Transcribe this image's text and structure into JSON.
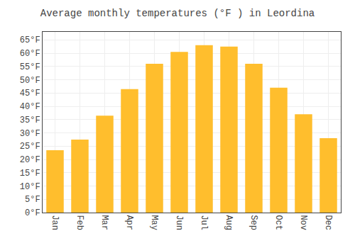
{
  "chart_data": {
    "type": "bar",
    "title": "Average monthly temperatures (°F ) in Leordina",
    "categories": [
      "Jan",
      "Feb",
      "Mar",
      "Apr",
      "May",
      "Jun",
      "Jul",
      "Aug",
      "Sep",
      "Oct",
      "Nov",
      "Dec"
    ],
    "values": [
      23.5,
      27.5,
      36.5,
      46.5,
      56.0,
      60.5,
      63.0,
      62.5,
      56.0,
      47.0,
      37.0,
      28.0
    ],
    "color": "#FFBE2D",
    "ylim": [
      0,
      68
    ],
    "yticks": [
      {
        "value": 0,
        "label": "0°F"
      },
      {
        "value": 5,
        "label": "5°F"
      },
      {
        "value": 10,
        "label": "10°F"
      },
      {
        "value": 15,
        "label": "15°F"
      },
      {
        "value": 20,
        "label": "20°F"
      },
      {
        "value": 25,
        "label": "25°F"
      },
      {
        "value": 30,
        "label": "30°F"
      },
      {
        "value": 35,
        "label": "35°F"
      },
      {
        "value": 40,
        "label": "40°F"
      },
      {
        "value": 45,
        "label": "45°F"
      },
      {
        "value": 50,
        "label": "50°F"
      },
      {
        "value": 55,
        "label": "55°F"
      },
      {
        "value": 60,
        "label": "60°F"
      },
      {
        "value": 65,
        "label": "65°F"
      }
    ],
    "grid": true
  }
}
